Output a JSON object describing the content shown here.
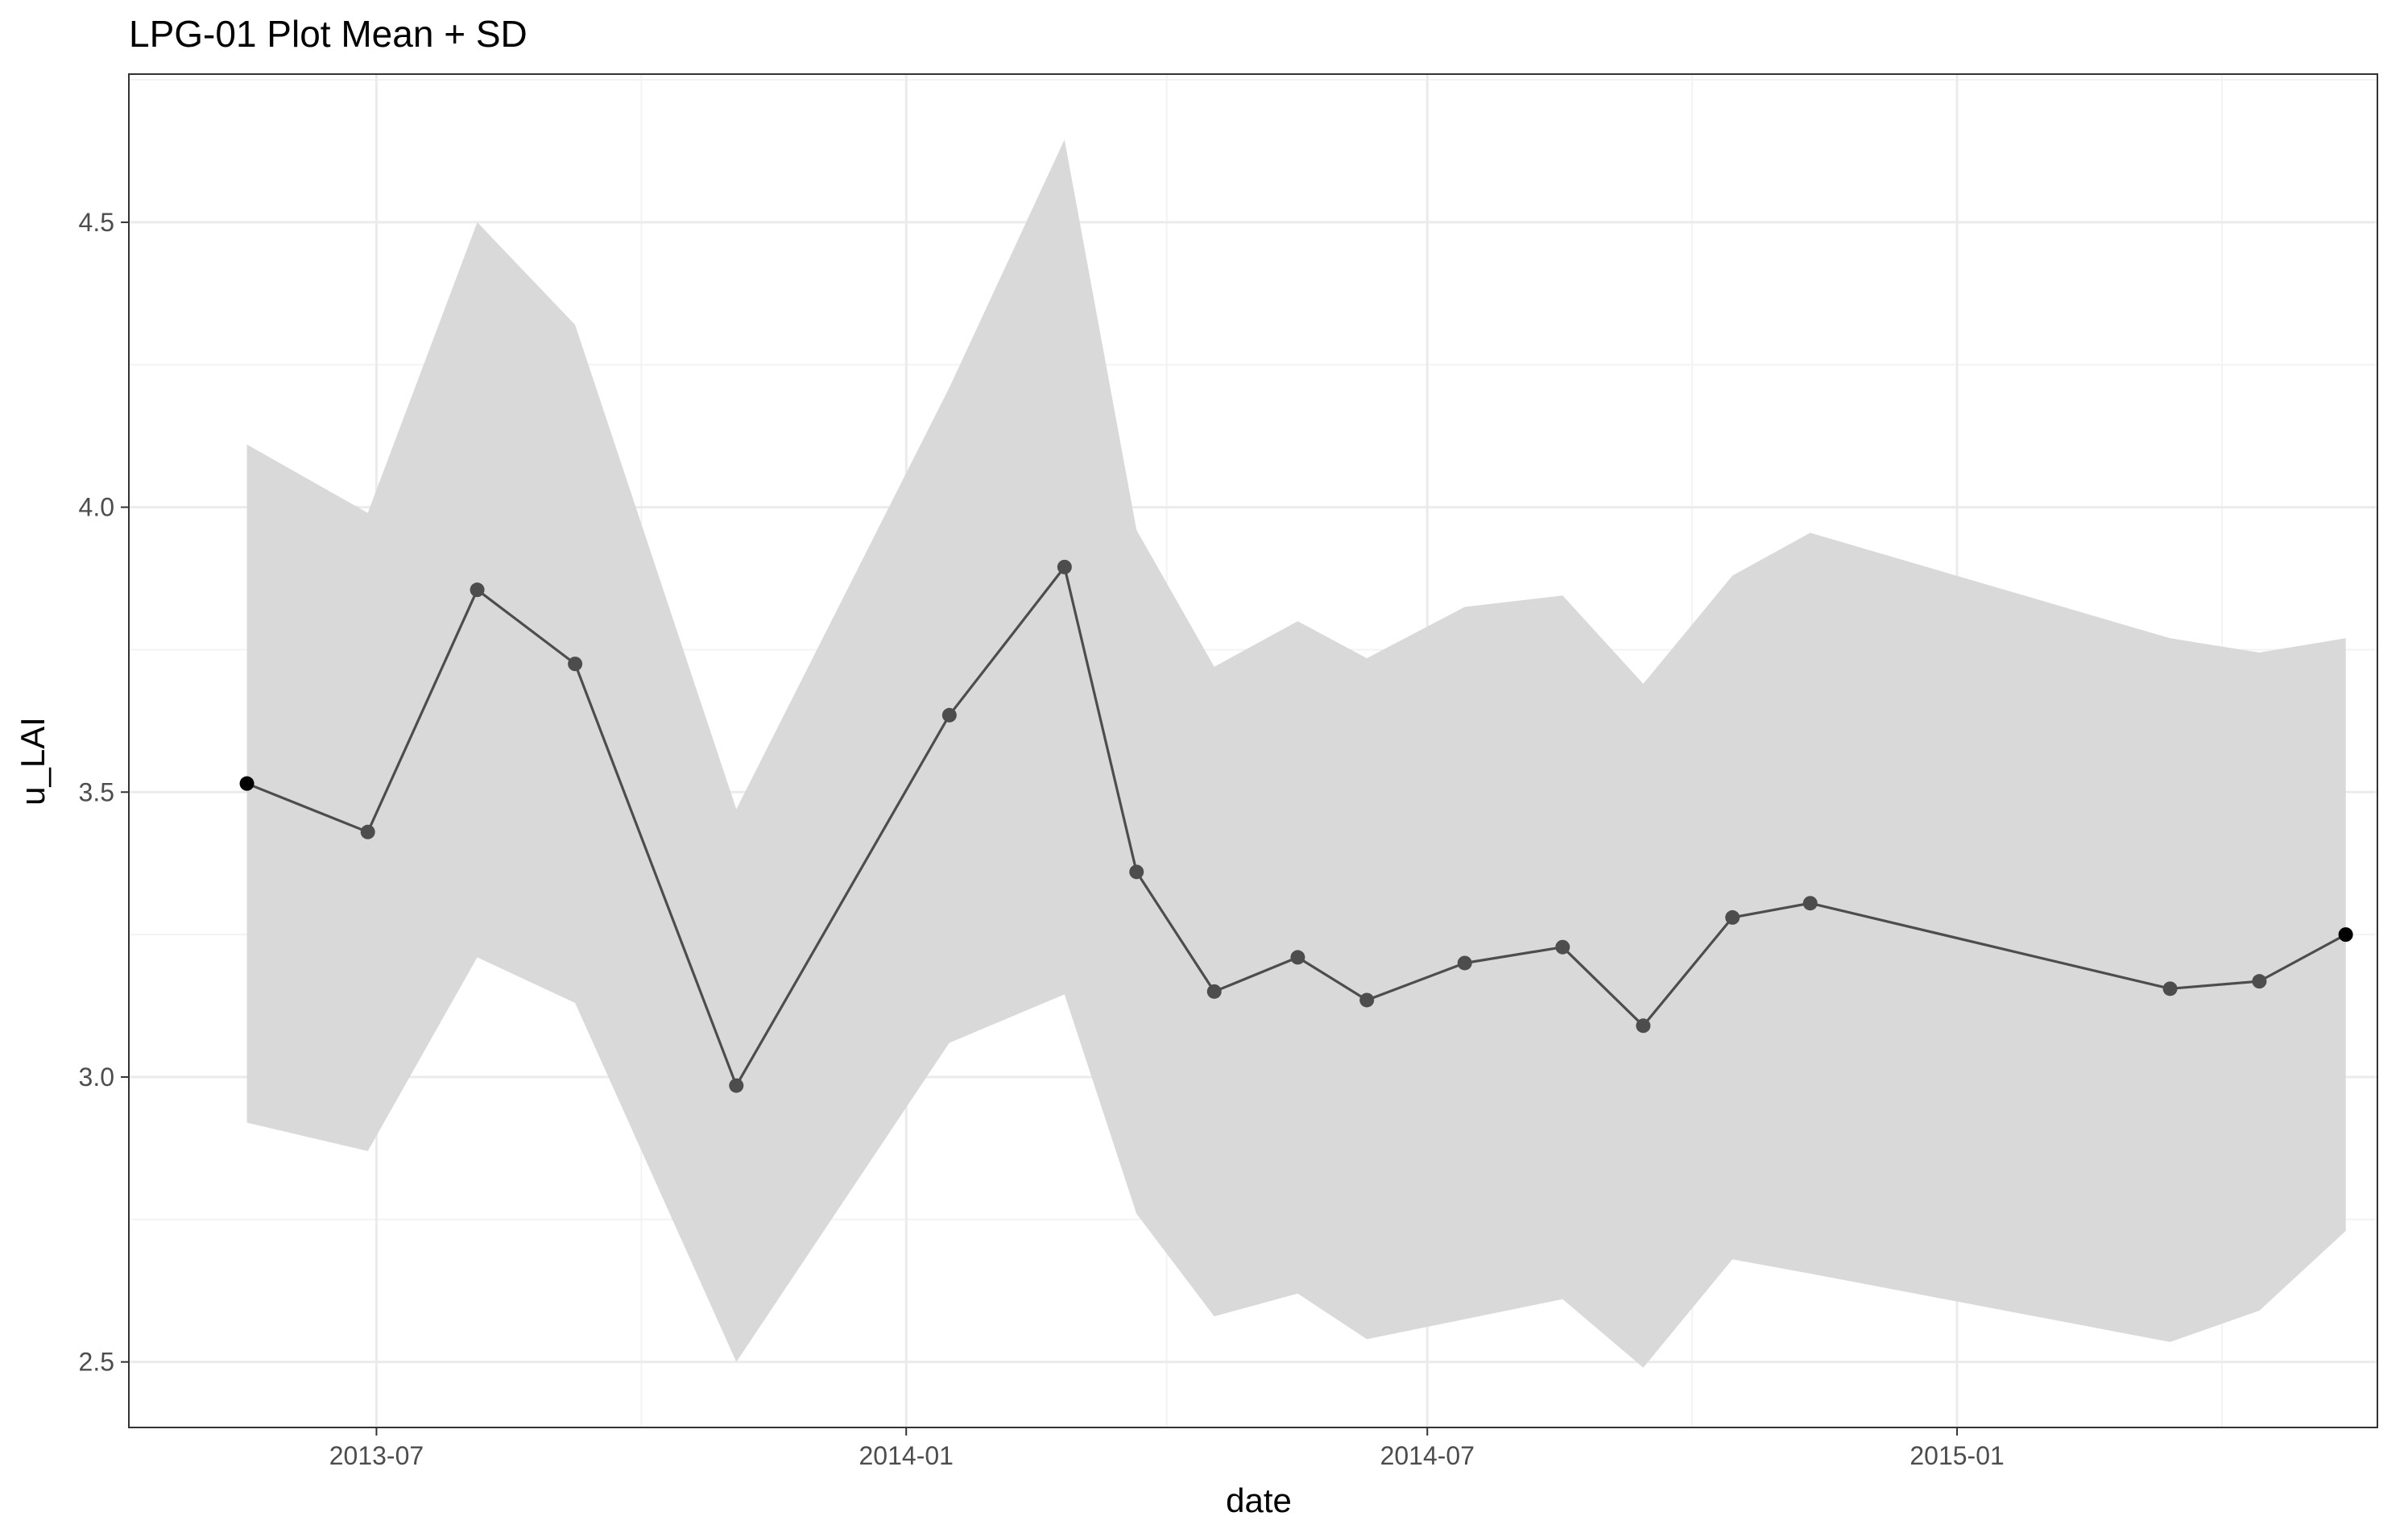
{
  "chart_data": {
    "type": "line",
    "title": "LPG-01 Plot Mean + SD",
    "xlabel": "date",
    "ylabel": "u_LAI",
    "x_ticks": [
      "2013-07",
      "2014-01",
      "2014-07",
      "2015-01"
    ],
    "y_ticks": [
      "2.5",
      "3.0",
      "3.5",
      "4.0",
      "4.5"
    ],
    "xlim": [
      "2013-04-06",
      "2015-05-27"
    ],
    "ylim": [
      2.385,
      4.76
    ],
    "grid": true,
    "legend": "none",
    "colors": {
      "line": "#4d4d4d",
      "point": "#4d4d4d",
      "ribbon": "#d9d9d9",
      "grid_major": "#ebebeb",
      "grid_minor": "#f3f3f3",
      "panel_border": "#333333"
    },
    "series": [
      {
        "points": [
          {
            "x": "2013-05-17",
            "mean": 3.515,
            "lower": 2.92,
            "upper": 4.11
          },
          {
            "x": "2013-06-28",
            "mean": 3.43,
            "lower": 2.87,
            "upper": 3.99
          },
          {
            "x": "2013-08-05",
            "mean": 3.855,
            "lower": 3.21,
            "upper": 4.5
          },
          {
            "x": "2013-09-08",
            "mean": 3.725,
            "lower": 3.13,
            "upper": 4.32
          },
          {
            "x": "2013-11-03",
            "mean": 2.985,
            "lower": 2.5,
            "upper": 3.47
          },
          {
            "x": "2014-01-16",
            "mean": 3.635,
            "lower": 3.06,
            "upper": 4.21
          },
          {
            "x": "2014-02-25",
            "mean": 3.895,
            "lower": 3.145,
            "upper": 4.645
          },
          {
            "x": "2014-03-22",
            "mean": 3.36,
            "lower": 2.76,
            "upper": 3.96
          },
          {
            "x": "2014-04-18",
            "mean": 3.15,
            "lower": 2.58,
            "upper": 3.72
          },
          {
            "x": "2014-05-17",
            "mean": 3.21,
            "lower": 2.62,
            "upper": 3.8
          },
          {
            "x": "2014-06-10",
            "mean": 3.135,
            "lower": 2.54,
            "upper": 3.735
          },
          {
            "x": "2014-07-14",
            "mean": 3.2,
            "lower": 2.575,
            "upper": 3.825
          },
          {
            "x": "2014-08-17",
            "mean": 3.228,
            "lower": 2.61,
            "upper": 3.845
          },
          {
            "x": "2014-09-14",
            "mean": 3.09,
            "lower": 2.49,
            "upper": 3.69
          },
          {
            "x": "2014-10-15",
            "mean": 3.28,
            "lower": 2.68,
            "upper": 3.88
          },
          {
            "x": "2014-11-11",
            "mean": 3.305,
            "lower": 2.655,
            "upper": 3.955
          },
          {
            "x": "2015-03-16",
            "mean": 3.155,
            "lower": 2.535,
            "upper": 3.77
          },
          {
            "x": "2015-04-16",
            "mean": 3.168,
            "lower": 2.59,
            "upper": 3.745
          },
          {
            "x": "2015-05-16",
            "mean": 3.25,
            "lower": 2.73,
            "upper": 3.77
          }
        ]
      }
    ]
  }
}
